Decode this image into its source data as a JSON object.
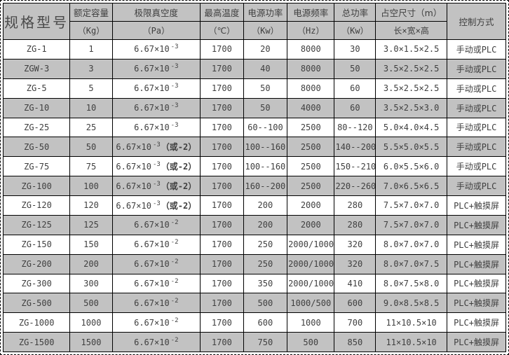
{
  "colors": {
    "border": "#000000",
    "header_bg": "#c2c2c2",
    "row_alt_bg": "#c2c2c2",
    "text": "#3f3f3f"
  },
  "table": {
    "header": {
      "model": "规格型号",
      "control": "控制方式",
      "columns": [
        {
          "line1": "额定容量",
          "line2": "（Kg）"
        },
        {
          "line1": "极限真空度",
          "line2": "（Pa）"
        },
        {
          "line1": "最高温度",
          "line2": "（℃）"
        },
        {
          "line1": "电源功率",
          "line2": "（Kw）"
        },
        {
          "line1": "电源频率",
          "line2": "（Hz）"
        },
        {
          "line1": "总功率",
          "line2": "（Kw）"
        },
        {
          "line1": "占空尺寸（m）",
          "line2": "长×宽×高"
        }
      ]
    },
    "rows": [
      {
        "model": "ZG-1",
        "capacity": "1",
        "vacuum_base": "6.67×10",
        "vacuum_exp": "-3",
        "vacuum_note": "",
        "max_temp": "1700",
        "power": "20",
        "frequency": "8000",
        "total_power": "30",
        "dimensions": "3.0×1.5×2.5",
        "control": "手动或PLC"
      },
      {
        "model": "ZGW-3",
        "capacity": "3",
        "vacuum_base": "6.67×10",
        "vacuum_exp": "-3",
        "vacuum_note": "",
        "max_temp": "1700",
        "power": "40",
        "frequency": "8000",
        "total_power": "50",
        "dimensions": "3.5×2.5×2.5",
        "control": "手动或PLC"
      },
      {
        "model": "ZG-5",
        "capacity": "5",
        "vacuum_base": "6.67×10",
        "vacuum_exp": "-3",
        "vacuum_note": "",
        "max_temp": "1700",
        "power": "50",
        "frequency": "8000",
        "total_power": "60",
        "dimensions": "3.5×2.5×2.5",
        "control": "手动或PLC"
      },
      {
        "model": "ZG-10",
        "capacity": "10",
        "vacuum_base": "6.67×10",
        "vacuum_exp": "-3",
        "vacuum_note": "",
        "max_temp": "1700",
        "power": "50",
        "frequency": "4000",
        "total_power": "60",
        "dimensions": "3.5×2.5×3.0",
        "control": "手动或PLC"
      },
      {
        "model": "ZG-25",
        "capacity": "25",
        "vacuum_base": "6.67×10",
        "vacuum_exp": "-3",
        "vacuum_note": "",
        "max_temp": "1700",
        "power": "60--100",
        "frequency": "2500",
        "total_power": "80--120",
        "dimensions": "5.0×4.0×4.5",
        "control": "手动或PLC"
      },
      {
        "model": "ZG-50",
        "capacity": "50",
        "vacuum_base": "6.67×10",
        "vacuum_exp": "-3",
        "vacuum_note": "（或-2）",
        "max_temp": "1700",
        "power": "100--160",
        "frequency": "2500",
        "total_power": "140--200",
        "dimensions": "5.5×5.0×5.5",
        "control": "手动或PLC"
      },
      {
        "model": "ZG-75",
        "capacity": "75",
        "vacuum_base": "6.67×10",
        "vacuum_exp": "-3",
        "vacuum_note": "（或-2）",
        "max_temp": "1700",
        "power": "100--160",
        "frequency": "2500",
        "total_power": "150--210",
        "dimensions": "6.0×5.5×6.0",
        "control": "手动或PLC"
      },
      {
        "model": "ZG-100",
        "capacity": "100",
        "vacuum_base": "6.67×10",
        "vacuum_exp": "-3",
        "vacuum_note": "（或-2）",
        "max_temp": "1700",
        "power": "160--200",
        "frequency": "2500",
        "total_power": "220--260",
        "dimensions": "7.0×6.5×6.5",
        "control": "手动或PLC"
      },
      {
        "model": "ZG-120",
        "capacity": "120",
        "vacuum_base": "6.67×10",
        "vacuum_exp": "-3",
        "vacuum_note": "（或-2）",
        "max_temp": "1700",
        "power": "200",
        "frequency": "2000",
        "total_power": "280",
        "dimensions": "7.5×7.0×7.0",
        "control": "PLC+触摸屏"
      },
      {
        "model": "ZG-125",
        "capacity": "125",
        "vacuum_base": "6.67×10",
        "vacuum_exp": "-2",
        "vacuum_note": "",
        "max_temp": "1700",
        "power": "200",
        "frequency": "2000",
        "total_power": "280",
        "dimensions": "7.5×7.0×7.0",
        "control": "PLC+触摸屏"
      },
      {
        "model": "ZG-150",
        "capacity": "150",
        "vacuum_base": "6.67×10",
        "vacuum_exp": "-2",
        "vacuum_note": "",
        "max_temp": "1700",
        "power": "250",
        "frequency": "2000/1000",
        "total_power": "320",
        "dimensions": "8.0×7.0×7.0",
        "control": "PLC+触摸屏"
      },
      {
        "model": "ZG-200",
        "capacity": "200",
        "vacuum_base": "6.67×10",
        "vacuum_exp": "-2",
        "vacuum_note": "",
        "max_temp": "1700",
        "power": "250",
        "frequency": "2000/1000",
        "total_power": "320",
        "dimensions": "8.0×7.0×7.5",
        "control": "PLC+触摸屏"
      },
      {
        "model": "ZG-300",
        "capacity": "300",
        "vacuum_base": "6.67×10",
        "vacuum_exp": "-2",
        "vacuum_note": "",
        "max_temp": "1700",
        "power": "350",
        "frequency": "2000/1000",
        "total_power": "410",
        "dimensions": "8.0×7.5×8.0",
        "control": "PLC+触摸屏"
      },
      {
        "model": "ZG-500",
        "capacity": "500",
        "vacuum_base": "6.67×10",
        "vacuum_exp": "-2",
        "vacuum_note": "",
        "max_temp": "1700",
        "power": "500",
        "frequency": "1000/500",
        "total_power": "600",
        "dimensions": "9.0×8.5×8.5",
        "control": "PLC+触摸屏"
      },
      {
        "model": "ZG-1000",
        "capacity": "1000",
        "vacuum_base": "6.67×10",
        "vacuum_exp": "-2",
        "vacuum_note": "",
        "max_temp": "1700",
        "power": "600",
        "frequency": "1000",
        "total_power": "700",
        "dimensions": "11×10.5×10",
        "control": "PLC+触摸屏"
      },
      {
        "model": "ZG-1500",
        "capacity": "1500",
        "vacuum_base": "6.67×10",
        "vacuum_exp": "-2",
        "vacuum_note": "",
        "max_temp": "1700",
        "power": "750",
        "frequency": "500",
        "total_power": "850",
        "dimensions": "11×10.5×10",
        "control": "PLC+触摸屏"
      }
    ]
  }
}
